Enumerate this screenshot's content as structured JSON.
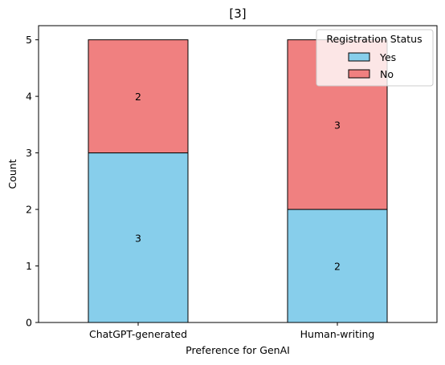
{
  "chart_data": {
    "type": "bar",
    "stacked": true,
    "title": "[3]",
    "xlabel": "Preference for GenAI",
    "ylabel": "Count",
    "categories": [
      "ChatGPT-generated",
      "Human-writing"
    ],
    "series": [
      {
        "name": "Yes",
        "values": [
          3,
          2
        ],
        "color": "#87CEEB"
      },
      {
        "name": "No",
        "values": [
          2,
          3
        ],
        "color": "#F08080"
      }
    ],
    "ylim": [
      0,
      5.25
    ],
    "yticks": [
      0,
      1,
      2,
      3,
      4,
      5
    ],
    "grid": false,
    "legend": {
      "title": "Registration Status",
      "placement": "top-right"
    }
  }
}
